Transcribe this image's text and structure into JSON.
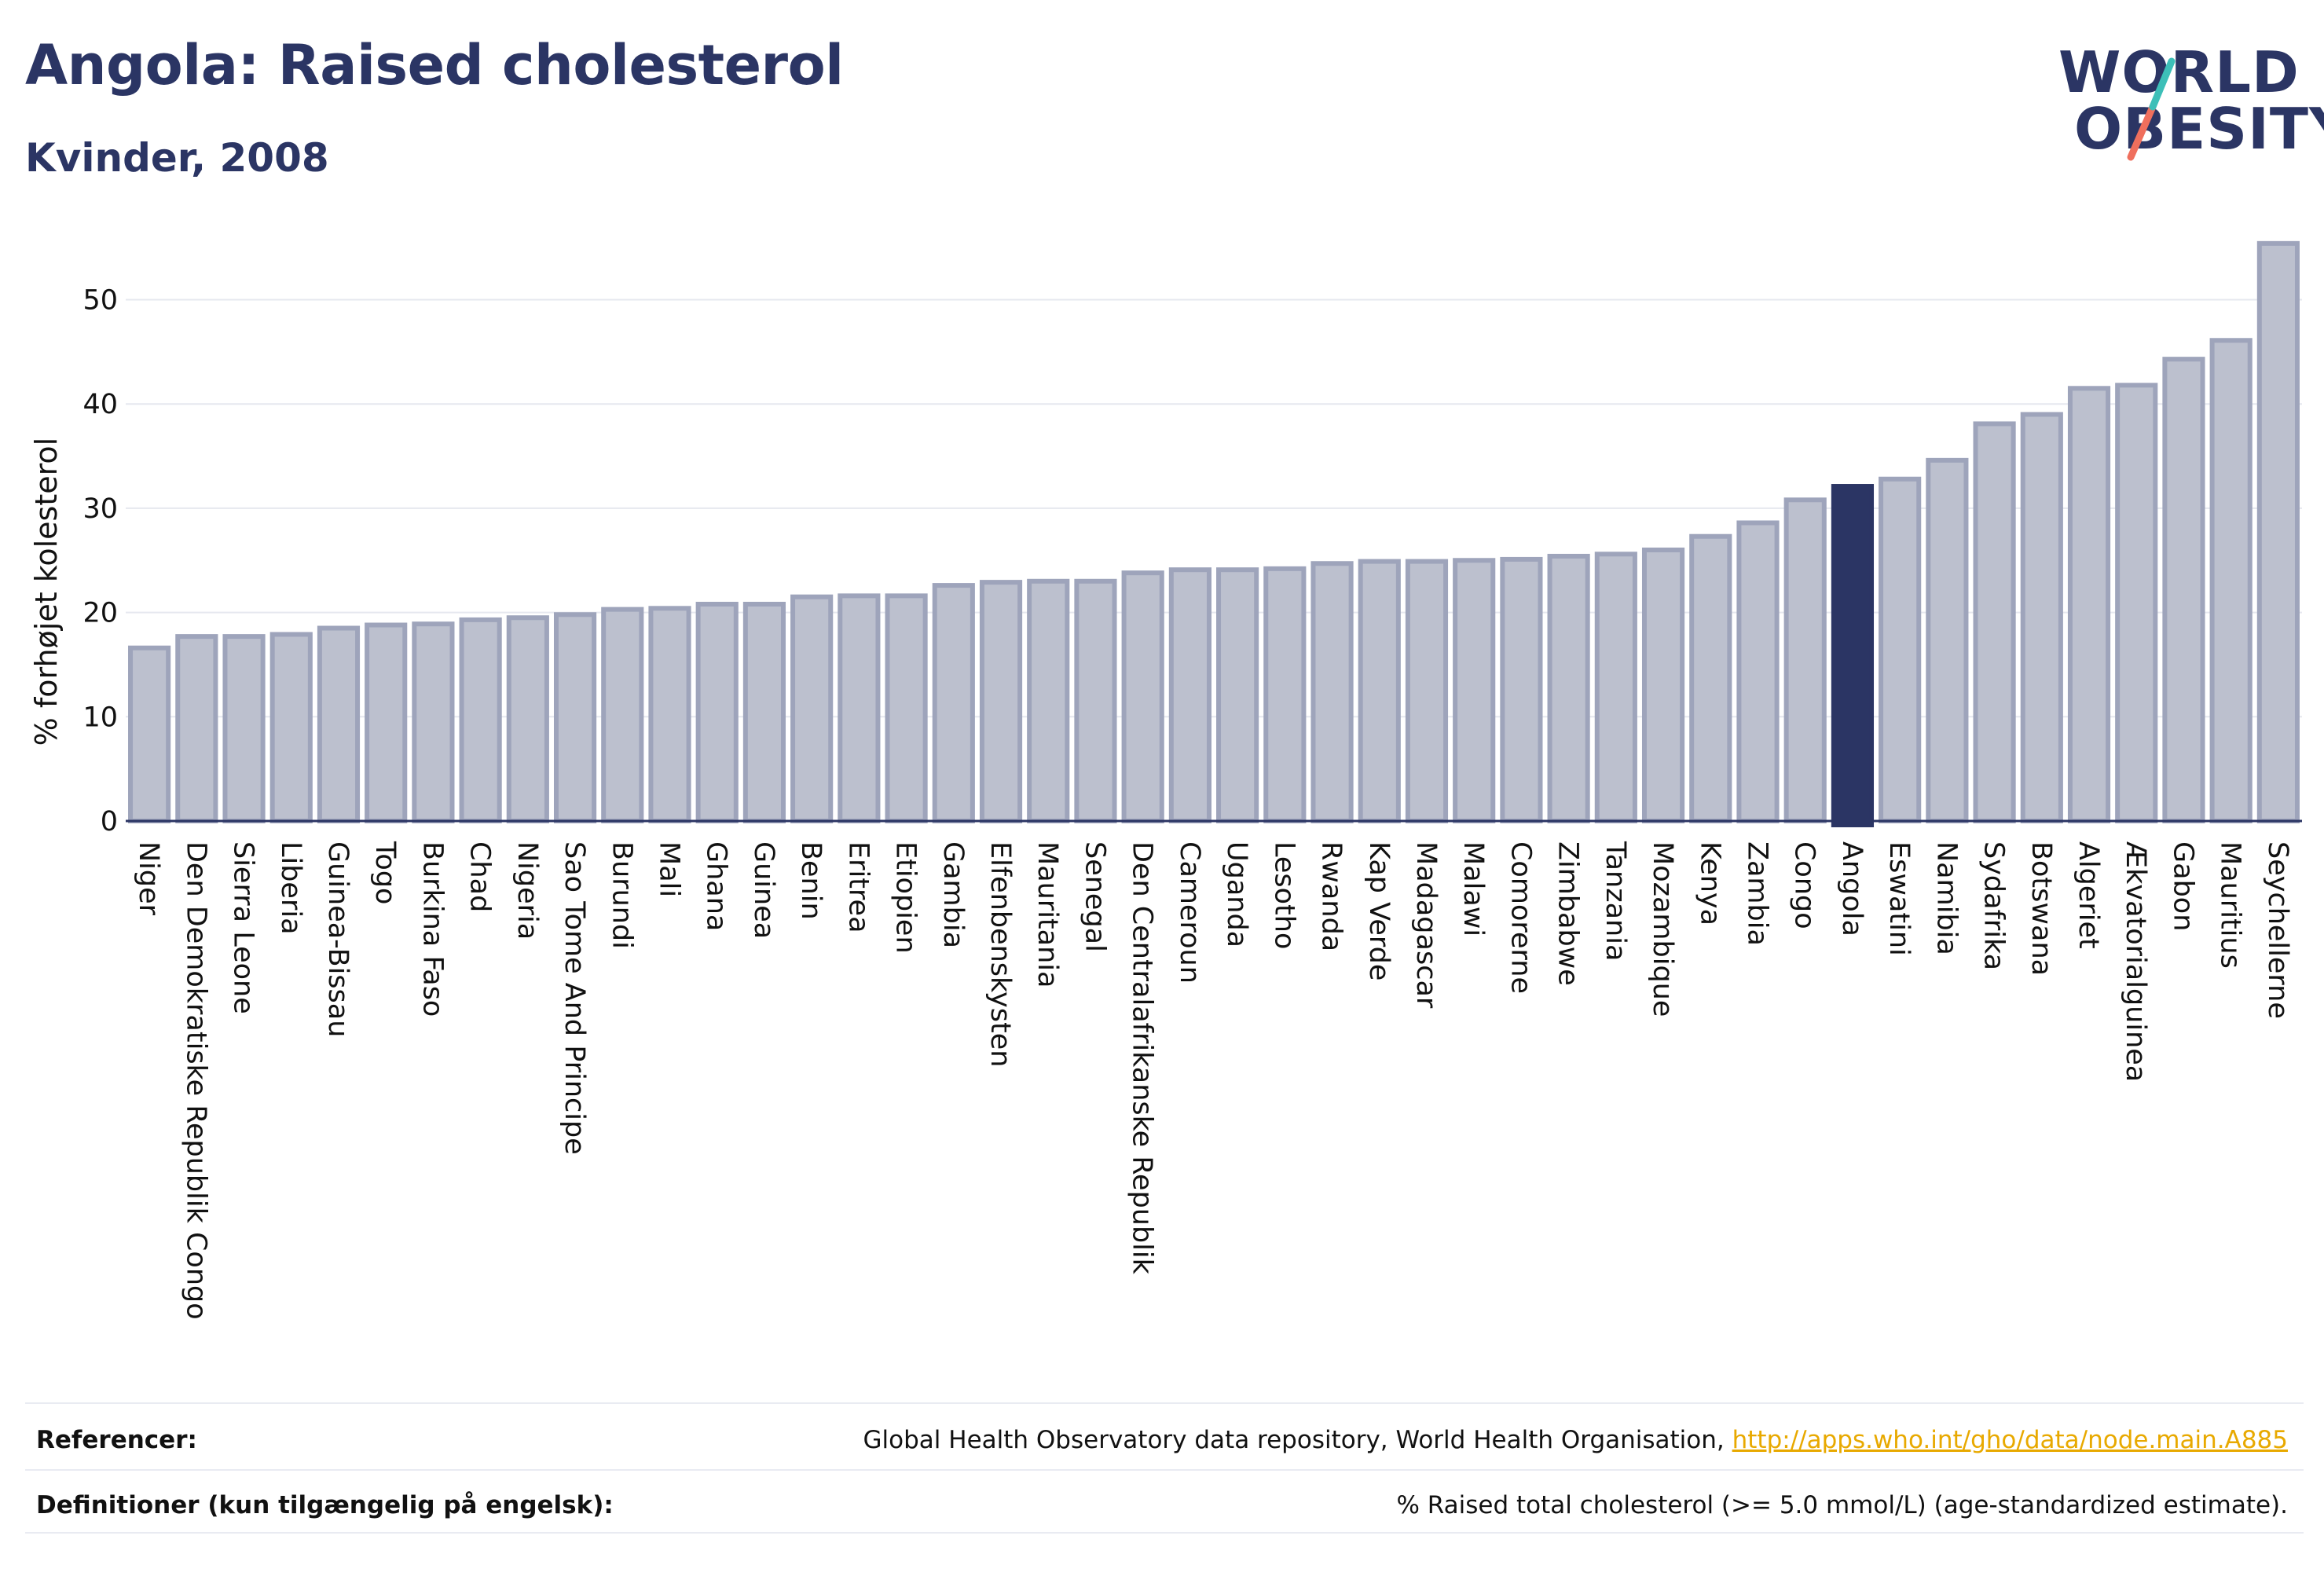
{
  "header": {
    "title": "Angola: Raised cholesterol",
    "subtitle": "Kvinder, 2008"
  },
  "logo": {
    "line1": "WORLD",
    "line2": "OBESITY"
  },
  "colors": {
    "highlight": "#2b3564",
    "bar_fill": "#bcc0ce",
    "bar_stroke": "#9ea4bb",
    "logo_teal": "#3dbfb8",
    "logo_coral": "#ef6f5d",
    "link": "#e8a900"
  },
  "chart_data": {
    "type": "bar",
    "title": "",
    "xlabel": "",
    "ylabel": "% forhøjet kolesterol",
    "ylim": [
      0,
      56
    ],
    "yticks": [
      0,
      10,
      20,
      30,
      40,
      50
    ],
    "grid": true,
    "highlight": "Angola",
    "categories": [
      "Niger",
      "Den Demokratiske Republik Congo",
      "Sierra Leone",
      "Liberia",
      "Guinea-Bissau",
      "Togo",
      "Burkina Faso",
      "Chad",
      "Nigeria",
      "Sao Tome And Principe",
      "Burundi",
      "Mali",
      "Ghana",
      "Guinea",
      "Benin",
      "Eritrea",
      "Etiopien",
      "Gambia",
      "Elfenbenskysten",
      "Mauritania",
      "Senegal",
      "Den Centralafrikanske Republik",
      "Cameroun",
      "Uganda",
      "Lesotho",
      "Rwanda",
      "Kap Verde",
      "Madagascar",
      "Malawi",
      "Comorerne",
      "Zimbabwe",
      "Tanzania",
      "Mozambique",
      "Kenya",
      "Zambia",
      "Congo",
      "Angola",
      "Eswatini",
      "Namibia",
      "Sydafrika",
      "Botswana",
      "Algeriet",
      "Ækvatorialguinea",
      "Gabon",
      "Mauritius",
      "Seychellerne"
    ],
    "values": [
      16.6,
      17.7,
      17.7,
      17.9,
      18.5,
      18.8,
      18.9,
      19.3,
      19.5,
      19.8,
      20.3,
      20.4,
      20.8,
      20.8,
      21.5,
      21.6,
      21.6,
      22.6,
      22.9,
      23.0,
      23.0,
      23.8,
      24.1,
      24.1,
      24.2,
      24.7,
      24.9,
      24.9,
      25.0,
      25.1,
      25.4,
      25.6,
      26.0,
      27.3,
      28.6,
      30.8,
      32.1,
      32.8,
      34.6,
      38.1,
      39.0,
      41.5,
      41.8,
      44.3,
      46.1,
      55.4
    ]
  },
  "footer": {
    "ref_label": "Referencer:",
    "ref_text": "Global Health Observatory data repository, World Health Organisation, ",
    "ref_link": "http://apps.who.int/gho/data/node.main.A885",
    "def_label": "Definitioner (kun tilgængelig på engelsk):",
    "def_text": "% Raised total cholesterol (>= 5.0 mmol/L) (age-standardized estimate)."
  }
}
